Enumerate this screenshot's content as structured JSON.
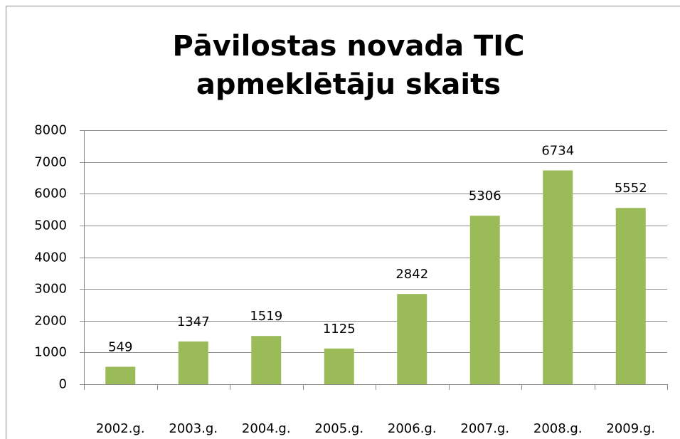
{
  "chart_data": {
    "type": "bar",
    "title": "Pāvilostas novada TIC apmeklētāju skaits",
    "categories": [
      "2002.g.",
      "2003.g.",
      "2004.g.",
      "2005.g.",
      "2006.g.",
      "2007.g.",
      "2008.g.",
      "2009.g."
    ],
    "values": [
      549,
      1347,
      1519,
      1125,
      2842,
      5306,
      6734,
      5552
    ],
    "color": "#9bbb59",
    "ylim": [
      0,
      8000
    ],
    "yticks": [
      0,
      1000,
      2000,
      3000,
      4000,
      5000,
      6000,
      7000,
      8000
    ],
    "grid": true
  }
}
